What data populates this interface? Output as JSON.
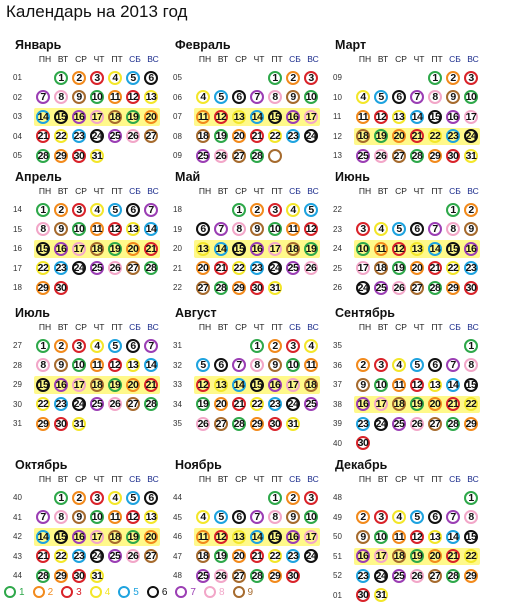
{
  "title": "Календарь на 2013 год",
  "weekday_headers": [
    "ПН",
    "ВТ",
    "СР",
    "ЧТ",
    "ПТ",
    "СБ",
    "ВС"
  ],
  "ring_colors": {
    "1": "#2ea84a",
    "2": "#f28a1c",
    "3": "#d9232a",
    "4": "#f3e62a",
    "5": "#1ea3df",
    "6": "#111111",
    "7": "#9b3eb4",
    "8": "#f2a6c8",
    "9": "#a66b2e"
  },
  "legend": [
    {
      "num": "1",
      "color_key": "1"
    },
    {
      "num": "2",
      "color_key": "2"
    },
    {
      "num": "3",
      "color_key": "3"
    },
    {
      "num": "4",
      "color_key": "4"
    },
    {
      "num": "5",
      "color_key": "5"
    },
    {
      "num": "6",
      "color_key": "6"
    },
    {
      "num": "7",
      "color_key": "7"
    },
    {
      "num": "8",
      "color_key": "8"
    },
    {
      "num": "9",
      "color_key": "9"
    }
  ],
  "months": [
    {
      "name": "Январь",
      "weeks": [
        {
          "w": "01",
          "start": 1,
          "days": [
            1,
            2,
            3,
            4,
            5,
            6
          ]
        },
        {
          "w": "02",
          "start": 0,
          "days": [
            7,
            8,
            9,
            10,
            11,
            12,
            13
          ]
        },
        {
          "w": "03",
          "start": 0,
          "days": [
            14,
            15,
            16,
            17,
            18,
            19,
            20
          ],
          "hl": true
        },
        {
          "w": "04",
          "start": 0,
          "days": [
            21,
            22,
            23,
            24,
            25,
            26,
            27
          ]
        },
        {
          "w": "05",
          "start": 0,
          "days": [
            28,
            29,
            30,
            31
          ]
        }
      ]
    },
    {
      "name": "Февраль",
      "weeks": [
        {
          "w": "05",
          "start": 4,
          "days": [
            1,
            2,
            3
          ]
        },
        {
          "w": "06",
          "start": 0,
          "days": [
            4,
            5,
            6,
            7,
            8,
            9,
            10
          ]
        },
        {
          "w": "07",
          "start": 0,
          "days": [
            11,
            12,
            13,
            14,
            15,
            16,
            17
          ],
          "hl": true
        },
        {
          "w": "08",
          "start": 0,
          "days": [
            18,
            19,
            20,
            21,
            22,
            23,
            24
          ]
        },
        {
          "w": "09",
          "start": 0,
          "days": [
            25,
            26,
            27,
            28,
            ""
          ]
        }
      ]
    },
    {
      "name": "Март",
      "weeks": [
        {
          "w": "09",
          "start": 4,
          "days": [
            1,
            2,
            3
          ]
        },
        {
          "w": "10",
          "start": 0,
          "days": [
            4,
            5,
            6,
            7,
            8,
            9,
            10
          ]
        },
        {
          "w": "11",
          "start": 0,
          "days": [
            11,
            12,
            13,
            14,
            15,
            16,
            17
          ]
        },
        {
          "w": "12",
          "start": 0,
          "days": [
            18,
            19,
            20,
            21,
            22,
            23,
            24
          ],
          "hl": true
        },
        {
          "w": "13",
          "start": 0,
          "days": [
            25,
            26,
            27,
            28,
            29,
            30,
            31
          ]
        }
      ]
    },
    {
      "name": "Апрель",
      "weeks": [
        {
          "w": "14",
          "start": 0,
          "days": [
            1,
            2,
            3,
            4,
            5,
            6,
            7
          ]
        },
        {
          "w": "15",
          "start": 0,
          "days": [
            8,
            9,
            10,
            11,
            12,
            13,
            14
          ]
        },
        {
          "w": "16",
          "start": 0,
          "days": [
            15,
            16,
            17,
            18,
            19,
            20,
            21
          ],
          "hl": true
        },
        {
          "w": "17",
          "start": 0,
          "days": [
            22,
            23,
            24,
            25,
            26,
            27,
            28
          ]
        },
        {
          "w": "18",
          "start": 0,
          "days": [
            29,
            30
          ]
        }
      ]
    },
    {
      "name": "Май",
      "weeks": [
        {
          "w": "18",
          "start": 2,
          "days": [
            1,
            2,
            3,
            4,
            5
          ]
        },
        {
          "w": "19",
          "start": 0,
          "days": [
            6,
            7,
            8,
            9,
            10,
            11,
            12
          ]
        },
        {
          "w": "20",
          "start": 0,
          "days": [
            13,
            14,
            15,
            16,
            17,
            18,
            19
          ],
          "hl": true
        },
        {
          "w": "21",
          "start": 0,
          "days": [
            20,
            21,
            22,
            23,
            24,
            25,
            26
          ]
        },
        {
          "w": "22",
          "start": 0,
          "days": [
            27,
            28,
            29,
            30,
            31
          ]
        }
      ]
    },
    {
      "name": "Июнь",
      "weeks": [
        {
          "w": "22",
          "start": 5,
          "days": [
            1,
            2
          ]
        },
        {
          "w": "23",
          "start": 0,
          "days": [
            3,
            4,
            5,
            6,
            7,
            8,
            9
          ]
        },
        {
          "w": "24",
          "start": 0,
          "days": [
            10,
            11,
            12,
            13,
            14,
            15,
            16
          ],
          "hl": true
        },
        {
          "w": "25",
          "start": 0,
          "days": [
            17,
            18,
            19,
            20,
            21,
            22,
            23
          ]
        },
        {
          "w": "26",
          "start": 0,
          "days": [
            24,
            25,
            26,
            27,
            28,
            29,
            30
          ]
        }
      ]
    },
    {
      "name": "Июль",
      "weeks": [
        {
          "w": "27",
          "start": 0,
          "days": [
            1,
            2,
            3,
            4,
            5,
            6,
            7
          ]
        },
        {
          "w": "28",
          "start": 0,
          "days": [
            8,
            9,
            10,
            11,
            12,
            13,
            14
          ]
        },
        {
          "w": "29",
          "start": 0,
          "days": [
            15,
            16,
            17,
            18,
            19,
            20,
            21
          ],
          "hl": true
        },
        {
          "w": "30",
          "start": 0,
          "days": [
            22,
            23,
            24,
            25,
            26,
            27,
            28
          ]
        },
        {
          "w": "31",
          "start": 0,
          "days": [
            29,
            30,
            31
          ]
        }
      ]
    },
    {
      "name": "Август",
      "weeks": [
        {
          "w": "31",
          "start": 3,
          "days": [
            1,
            2,
            3,
            4
          ]
        },
        {
          "w": "32",
          "start": 0,
          "days": [
            5,
            6,
            7,
            8,
            9,
            10,
            11
          ]
        },
        {
          "w": "33",
          "start": 0,
          "days": [
            12,
            13,
            14,
            15,
            16,
            17,
            18
          ],
          "hl": true
        },
        {
          "w": "34",
          "start": 0,
          "days": [
            19,
            20,
            21,
            22,
            23,
            24,
            25
          ]
        },
        {
          "w": "35",
          "start": 0,
          "days": [
            26,
            27,
            28,
            29,
            30,
            31
          ]
        }
      ]
    },
    {
      "name": "Сентябрь",
      "weeks": [
        {
          "w": "35",
          "start": 6,
          "days": [
            1
          ]
        },
        {
          "w": "36",
          "start": 0,
          "days": [
            2,
            3,
            4,
            5,
            6,
            7,
            8
          ]
        },
        {
          "w": "37",
          "start": 0,
          "days": [
            9,
            10,
            11,
            12,
            13,
            14,
            15
          ]
        },
        {
          "w": "38",
          "start": 0,
          "days": [
            16,
            17,
            18,
            19,
            20,
            21,
            22
          ],
          "hl": true
        },
        {
          "w": "39",
          "start": 0,
          "days": [
            23,
            24,
            25,
            26,
            27,
            28,
            29
          ]
        },
        {
          "w": "40",
          "start": 0,
          "days": [
            30
          ]
        }
      ]
    },
    {
      "name": "Октябрь",
      "weeks": [
        {
          "w": "40",
          "start": 1,
          "days": [
            1,
            2,
            3,
            4,
            5,
            6
          ]
        },
        {
          "w": "41",
          "start": 0,
          "days": [
            7,
            8,
            9,
            10,
            11,
            12,
            13
          ]
        },
        {
          "w": "42",
          "start": 0,
          "days": [
            14,
            15,
            16,
            17,
            18,
            19,
            20
          ],
          "hl": true
        },
        {
          "w": "43",
          "start": 0,
          "days": [
            21,
            22,
            23,
            24,
            25,
            26,
            27
          ]
        },
        {
          "w": "44",
          "start": 0,
          "days": [
            28,
            29,
            30,
            31
          ]
        }
      ]
    },
    {
      "name": "Ноябрь",
      "weeks": [
        {
          "w": "44",
          "start": 4,
          "days": [
            1,
            2,
            3
          ]
        },
        {
          "w": "45",
          "start": 0,
          "days": [
            4,
            5,
            6,
            7,
            8,
            9,
            10
          ]
        },
        {
          "w": "46",
          "start": 0,
          "days": [
            11,
            12,
            13,
            14,
            15,
            16,
            17
          ],
          "hl": true
        },
        {
          "w": "47",
          "start": 0,
          "days": [
            18,
            19,
            20,
            21,
            22,
            23,
            24
          ]
        },
        {
          "w": "48",
          "start": 0,
          "days": [
            25,
            26,
            27,
            28,
            29,
            30
          ]
        }
      ]
    },
    {
      "name": "Декабрь",
      "weeks": [
        {
          "w": "48",
          "start": 6,
          "days": [
            1
          ]
        },
        {
          "w": "49",
          "start": 0,
          "days": [
            2,
            3,
            4,
            5,
            6,
            7,
            8
          ]
        },
        {
          "w": "50",
          "start": 0,
          "days": [
            9,
            10,
            11,
            12,
            13,
            14,
            15
          ]
        },
        {
          "w": "51",
          "start": 0,
          "days": [
            16,
            17,
            18,
            19,
            20,
            21,
            22
          ],
          "hl": true
        },
        {
          "w": "52",
          "start": 0,
          "days": [
            23,
            24,
            25,
            26,
            27,
            28,
            29
          ]
        },
        {
          "w": "01",
          "start": 0,
          "days": [
            30,
            31
          ]
        }
      ]
    }
  ]
}
